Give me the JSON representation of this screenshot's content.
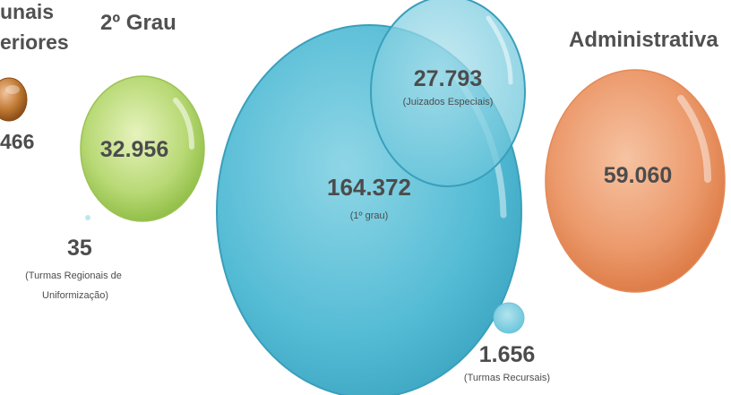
{
  "chart_data": {
    "type": "bubble",
    "bubbles": [
      {
        "id": "tribunais",
        "category": "Tribunais Superiores",
        "category_visible": [
          "unais",
          "eriores"
        ],
        "value_label": "466",
        "value": 466,
        "note": "",
        "color": "#b46a2a"
      },
      {
        "id": "segundo-grau",
        "category": "2º Grau",
        "value_label": "32.956",
        "value": 32956,
        "note": "",
        "color": "#a6cc5a"
      },
      {
        "id": "tru",
        "category": "",
        "value_label": "35",
        "value": 35,
        "note": "(Turmas Regionais de Uniformização)",
        "note_lines": [
          "(Turmas Regionais de",
          "Uniformização)"
        ],
        "color": "#8fd3e3"
      },
      {
        "id": "primeiro-grau",
        "category": "",
        "value_label": "164.372",
        "value": 164372,
        "note": "(1º grau)",
        "color": "#4cb9d3"
      },
      {
        "id": "juizados",
        "category": "",
        "value_label": "27.793",
        "value": 27793,
        "note": "(Juizados Especiais)",
        "color": "#5cc3d8"
      },
      {
        "id": "turmas-recursais",
        "category": "",
        "value_label": "1.656",
        "value": 1656,
        "note": "(Turmas Recursais)",
        "color": "#62c3d8"
      },
      {
        "id": "administrativa",
        "category": "Administrativa",
        "value_label": "59.060",
        "value": 59060,
        "note": "",
        "color": "#e98c5c"
      }
    ]
  }
}
